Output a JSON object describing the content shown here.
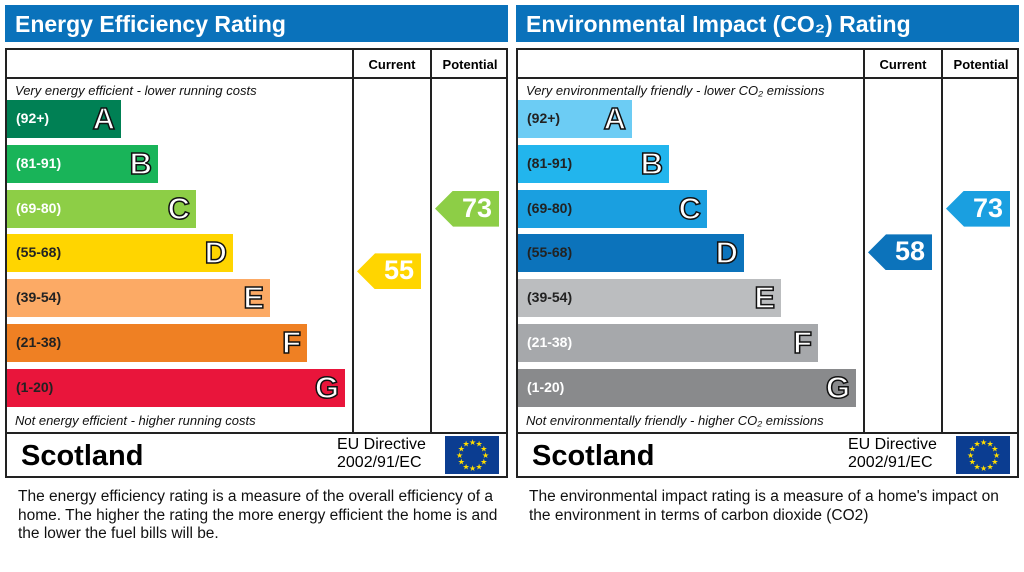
{
  "chart_data": [
    {
      "type": "bar",
      "title": "Energy Efficiency Rating",
      "columns": [
        "Current",
        "Potential"
      ],
      "top_note": "Very energy efficient - lower running costs",
      "bottom_note": "Not energy efficient - higher running costs",
      "bands": [
        {
          "letter": "A",
          "range": "(92+)",
          "color": "#008054",
          "text": "#ffffff"
        },
        {
          "letter": "B",
          "range": "(81-91)",
          "color": "#19b459",
          "text": "#ffffff"
        },
        {
          "letter": "C",
          "range": "(69-80)",
          "color": "#8dce46",
          "text": "#ffffff"
        },
        {
          "letter": "D",
          "range": "(55-68)",
          "color": "#ffd500",
          "text": "#222222"
        },
        {
          "letter": "E",
          "range": "(39-54)",
          "color": "#fcaa65",
          "text": "#222222"
        },
        {
          "letter": "F",
          "range": "(21-38)",
          "color": "#ef8023",
          "text": "#222222"
        },
        {
          "letter": "G",
          "range": "(1-20)",
          "color": "#e9153b",
          "text": "#222222"
        }
      ],
      "current": {
        "value": 55,
        "band": "D",
        "color": "#ffd500"
      },
      "potential": {
        "value": 73,
        "band": "C",
        "color": "#8dce46"
      },
      "country": "Scotland",
      "directive": [
        "EU Directive",
        "2002/91/EC"
      ],
      "description": "The energy efficiency rating is a measure of the overall efficiency of a home.  The higher the rating the more energy efficient the home is and the lower the fuel bills will be."
    },
    {
      "type": "bar",
      "title": "Environmental Impact (CO₂) Rating",
      "columns": [
        "Current",
        "Potential"
      ],
      "top_note": "Very environmentally friendly - lower CO₂ emissions",
      "bottom_note": "Not environmentally friendly - higher CO₂ emissions",
      "bands": [
        {
          "letter": "A",
          "range": "(92+)",
          "color": "#6cccf4",
          "text": "#222222"
        },
        {
          "letter": "B",
          "range": "(81-91)",
          "color": "#22b5ed",
          "text": "#222222"
        },
        {
          "letter": "C",
          "range": "(69-80)",
          "color": "#1a9fe0",
          "text": "#222222"
        },
        {
          "letter": "D",
          "range": "(55-68)",
          "color": "#0c73bb",
          "text": "#222222"
        },
        {
          "letter": "E",
          "range": "(39-54)",
          "color": "#bbbdbf",
          "text": "#222222"
        },
        {
          "letter": "F",
          "range": "(21-38)",
          "color": "#a6a8ab",
          "text": "#ffffff"
        },
        {
          "letter": "G",
          "range": "(1-20)",
          "color": "#898a8c",
          "text": "#ffffff"
        }
      ],
      "current": {
        "value": 58,
        "band": "D",
        "color": "#0c73bb"
      },
      "potential": {
        "value": 73,
        "band": "C",
        "color": "#1a9fe0"
      },
      "country": "Scotland",
      "directive": [
        "EU Directive",
        "2002/91/EC"
      ],
      "description": "The environmental impact rating is a measure of a home's impact on the environment in terms of carbon dioxide (CO2)"
    }
  ]
}
